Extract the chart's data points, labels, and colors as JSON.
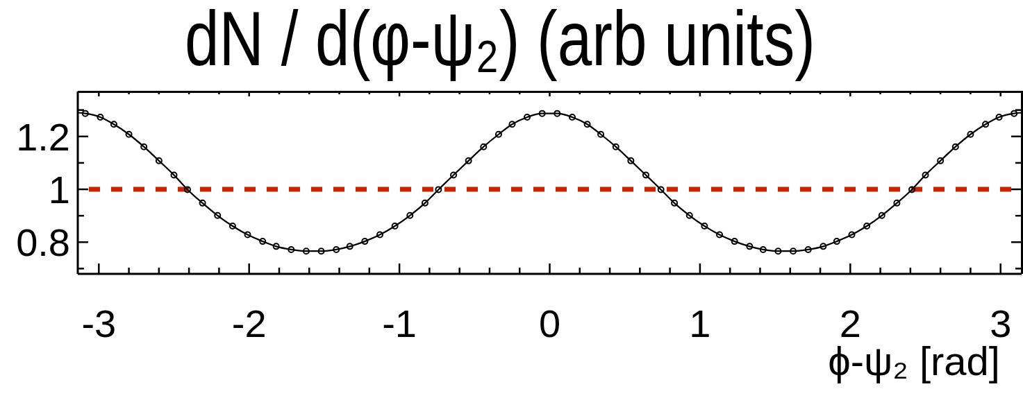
{
  "chart_data": {
    "type": "scatter",
    "title": "dN / d(φ-ψ₂) (arb units)",
    "xlabel": "ϕ-ψ₂ [rad]",
    "xlim": [
      -3.14,
      3.14
    ],
    "ylim": [
      0.68,
      1.37
    ],
    "xticks": [
      -3,
      {
        "value": -2.8,
        "label": null
      },
      {
        "value": -2.6,
        "label": null
      },
      {
        "value": -2.4,
        "label": null
      },
      {
        "value": -2.2,
        "label": null
      },
      -2,
      {
        "value": -1.8,
        "label": null
      },
      {
        "value": -1.6,
        "label": null
      },
      {
        "value": -1.4,
        "label": null
      },
      {
        "value": -1.2,
        "label": null
      },
      -1,
      {
        "value": -0.8,
        "label": null
      },
      {
        "value": -0.6,
        "label": null
      },
      {
        "value": -0.4,
        "label": null
      },
      {
        "value": -0.2,
        "label": null
      },
      0,
      {
        "value": 0.2,
        "label": null
      },
      {
        "value": 0.4,
        "label": null
      },
      {
        "value": 0.6,
        "label": null
      },
      {
        "value": 0.8,
        "label": null
      },
      1,
      {
        "value": 1.2,
        "label": null
      },
      {
        "value": 1.4,
        "label": null
      },
      {
        "value": 1.6,
        "label": null
      },
      {
        "value": 1.8,
        "label": null
      },
      2,
      {
        "value": 2.2,
        "label": null
      },
      {
        "value": 2.4,
        "label": null
      },
      {
        "value": 2.6,
        "label": null
      },
      {
        "value": 2.8,
        "label": null
      },
      3
    ],
    "yticks": [
      {
        "value": 0.7,
        "label": null
      },
      0.8,
      {
        "value": 0.9,
        "label": null
      },
      1,
      {
        "value": 1.1,
        "label": null
      },
      1.2,
      {
        "value": 1.3,
        "label": null
      }
    ],
    "marker": "circle",
    "line_style": "solid",
    "ref_lines": [
      {
        "axis": "y",
        "value": 1,
        "color": "#cc2200",
        "line_style": "dashed"
      }
    ],
    "series": [
      {
        "type": "line",
        "marker": "none",
        "color": "#000000",
        "x": [
          -3.14,
          -3.09,
          -2.99,
          -2.9,
          -2.8,
          -2.7,
          -2.6,
          -2.5,
          -2.41,
          -2.31,
          -2.21,
          -2.11,
          -2.01,
          -1.91,
          -1.82,
          -1.72,
          -1.62,
          -1.52,
          -1.42,
          -1.33,
          -1.23,
          -1.13,
          -1.03,
          -0.93,
          -0.83,
          -0.74,
          -0.64,
          -0.54,
          -0.44,
          -0.34,
          -0.25,
          -0.15,
          -0.05,
          0.05,
          0.15,
          0.25,
          0.34,
          0.44,
          0.54,
          0.64,
          0.74,
          0.83,
          0.93,
          1.03,
          1.13,
          1.23,
          1.33,
          1.42,
          1.52,
          1.62,
          1.72,
          1.82,
          1.91,
          2.01,
          2.11,
          2.21,
          2.31,
          2.41,
          2.5,
          2.6,
          2.7,
          2.8,
          2.9,
          2.99,
          3.09,
          3.14
        ],
        "values": [
          1.29,
          1.287,
          1.273,
          1.246,
          1.208,
          1.161,
          1.108,
          1.054,
          0.999,
          0.948,
          0.901,
          0.861,
          0.828,
          0.803,
          0.784,
          0.772,
          0.766,
          0.766,
          0.772,
          0.784,
          0.803,
          0.828,
          0.861,
          0.901,
          0.948,
          0.999,
          1.054,
          1.108,
          1.161,
          1.208,
          1.246,
          1.273,
          1.287,
          1.287,
          1.273,
          1.246,
          1.208,
          1.161,
          1.108,
          1.054,
          0.999,
          0.948,
          0.901,
          0.861,
          0.828,
          0.803,
          0.784,
          0.772,
          0.766,
          0.766,
          0.772,
          0.784,
          0.803,
          0.828,
          0.861,
          0.901,
          0.948,
          0.999,
          1.054,
          1.108,
          1.161,
          1.208,
          1.246,
          1.273,
          1.287,
          1.29
        ]
      },
      {
        "color": "#000000",
        "x": [
          -3.09,
          -2.99,
          -2.9,
          -2.8,
          -2.7,
          -2.6,
          -2.5,
          -2.41,
          -2.31,
          -2.21,
          -2.11,
          -2.01,
          -1.91,
          -1.82,
          -1.72,
          -1.62,
          -1.52,
          -1.42,
          -1.33,
          -1.23,
          -1.13,
          -1.03,
          -0.93,
          -0.83,
          -0.74,
          -0.64,
          -0.54,
          -0.44,
          -0.34,
          -0.25,
          -0.15,
          -0.05,
          0.05,
          0.15,
          0.25,
          0.34,
          0.44,
          0.54,
          0.64,
          0.74,
          0.83,
          0.93,
          1.03,
          1.13,
          1.23,
          1.33,
          1.42,
          1.52,
          1.62,
          1.72,
          1.82,
          1.91,
          2.01,
          2.11,
          2.21,
          2.31,
          2.41,
          2.5,
          2.6,
          2.7,
          2.8,
          2.9,
          2.99,
          3.09
        ],
        "values": [
          1.287,
          1.273,
          1.246,
          1.208,
          1.161,
          1.108,
          1.054,
          0.999,
          0.948,
          0.901,
          0.861,
          0.828,
          0.803,
          0.784,
          0.772,
          0.766,
          0.766,
          0.772,
          0.784,
          0.803,
          0.828,
          0.861,
          0.901,
          0.948,
          0.999,
          1.054,
          1.108,
          1.161,
          1.208,
          1.246,
          1.273,
          1.287,
          1.287,
          1.273,
          1.246,
          1.208,
          1.161,
          1.108,
          1.054,
          0.999,
          0.948,
          0.901,
          0.861,
          0.828,
          0.803,
          0.784,
          0.772,
          0.766,
          0.766,
          0.772,
          0.784,
          0.803,
          0.828,
          0.861,
          0.901,
          0.948,
          0.999,
          1.054,
          1.108,
          1.161,
          1.208,
          1.246,
          1.273,
          1.287
        ]
      }
    ]
  }
}
